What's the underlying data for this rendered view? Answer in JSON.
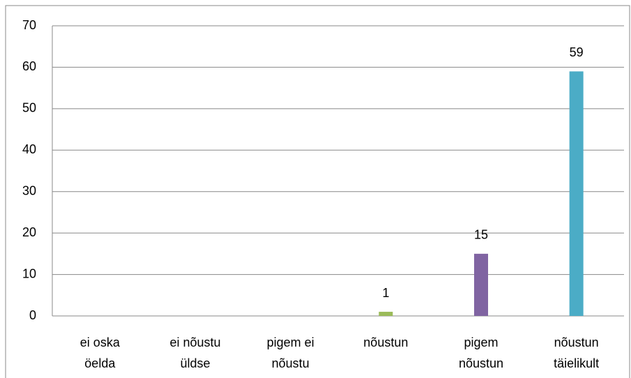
{
  "chart_data": {
    "type": "bar",
    "categories": [
      [
        "ei oska",
        "öelda"
      ],
      [
        "ei nõustu",
        "üldse"
      ],
      [
        "pigem ei",
        "nõustu"
      ],
      [
        "nõustun"
      ],
      [
        "pigem",
        "nõustun"
      ],
      [
        "nõustun",
        "täielikult"
      ]
    ],
    "values": [
      0,
      0,
      0,
      1,
      15,
      59
    ],
    "value_labels": [
      null,
      null,
      null,
      "1",
      "15",
      "59"
    ],
    "colors": [
      "#f79646",
      "#4f81bd",
      "#c0504d",
      "#9bbb59",
      "#8064a2",
      "#4bacc6"
    ],
    "ylim": [
      0,
      70
    ],
    "yticks": [
      0,
      10,
      20,
      30,
      40,
      50,
      60,
      70
    ],
    "grid": true
  }
}
